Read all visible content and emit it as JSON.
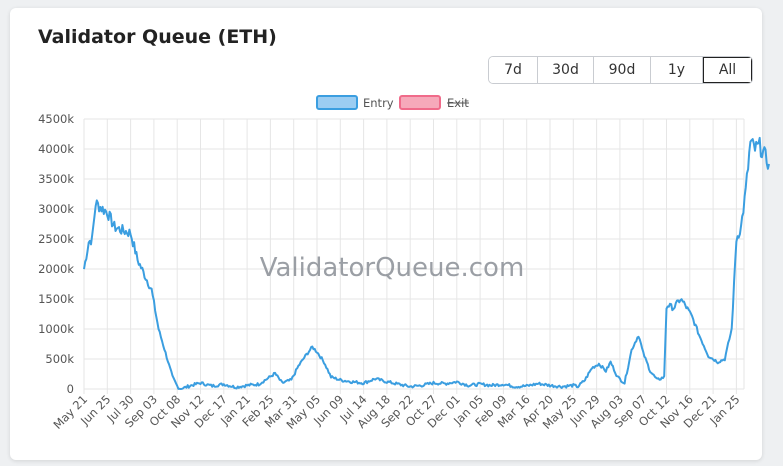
{
  "header": {
    "title": "Validator Queue (ETH)"
  },
  "ranges": [
    {
      "label": "7d",
      "active": false
    },
    {
      "label": "30d",
      "active": false
    },
    {
      "label": "90d",
      "active": false
    },
    {
      "label": "1y",
      "active": false
    },
    {
      "label": "All",
      "active": true
    }
  ],
  "watermark": "ValidatorQueue.com",
  "colors": {
    "entry": "#3b9ee0",
    "entry_fill": "#9ccdf2",
    "exit": "#f06b8a",
    "exit_fill": "#f6a9ba",
    "grid": "#e6e6e6"
  },
  "chart_data": {
    "type": "line",
    "title": "",
    "xlabel": "",
    "ylabel": "",
    "ylim": [
      0,
      4500000
    ],
    "y_ticks": [
      0,
      500000,
      1000000,
      1500000,
      2000000,
      2500000,
      3000000,
      3500000,
      4000000,
      4500000
    ],
    "y_tick_labels": [
      "0",
      "500k",
      "1000k",
      "1500k",
      "2000k",
      "2500k",
      "3000k",
      "3500k",
      "4000k",
      "4500k"
    ],
    "x_tick_labels": [
      "May 21",
      "Jun 25",
      "Jul 30",
      "Sep 03",
      "Oct 08",
      "Nov 12",
      "Dec 17",
      "Jan 21",
      "Feb 25",
      "Mar 31",
      "May 05",
      "Jun 09",
      "Jul 14",
      "Aug 18",
      "Sep 22",
      "Oct 27",
      "Dec 01",
      "Jan 05",
      "Feb 09",
      "Mar 16",
      "Apr 20",
      "May 25",
      "Jun 29",
      "Aug 03",
      "Sep 07",
      "Oct 12",
      "Nov 16",
      "Dec 21",
      "Jan 25"
    ],
    "legend": {
      "position": "top",
      "entries": [
        {
          "name": "Entry",
          "hidden": false
        },
        {
          "name": "Exit",
          "hidden": true
        }
      ]
    },
    "grid": true,
    "series": [
      {
        "name": "Entry",
        "x_tick_index": [
          0,
          0.2,
          0.35,
          0.5,
          0.8,
          1.0,
          1.3,
          1.6,
          2.0,
          2.3,
          2.6,
          2.9,
          3.2,
          3.5,
          3.8,
          4.0,
          4.1,
          4.3,
          4.6,
          5.0,
          5.5,
          6.0,
          6.5,
          7.0,
          7.5,
          7.9,
          8.2,
          8.5,
          8.9,
          9.2,
          9.5,
          9.8,
          10.0,
          10.3,
          10.6,
          11.0,
          11.5,
          12.0,
          12.5,
          13.0,
          13.5,
          14.0,
          14.5,
          15.0,
          15.5,
          16.0,
          16.5,
          17.0,
          17.5,
          18.0,
          18.5,
          19.0,
          19.5,
          20.0,
          20.5,
          21.0,
          21.2,
          21.5,
          21.8,
          22.1,
          22.4,
          22.6,
          22.9,
          23.2,
          23.5,
          23.8,
          24.0,
          24.3,
          24.6,
          24.9,
          25.0,
          25.05,
          25.3,
          25.6,
          25.8,
          26.1,
          26.4,
          26.8,
          27.2,
          27.5,
          27.8,
          28.0,
          28.2,
          28.4,
          28.6,
          28.8,
          29.0,
          29.2,
          29.4
        ],
        "values": [
          2000000,
          2450000,
          2500000,
          3100000,
          3000000,
          2950000,
          2700000,
          2650000,
          2600000,
          2150000,
          1900000,
          1650000,
          1000000,
          600000,
          200000,
          50000,
          0,
          20000,
          60000,
          100000,
          50000,
          80000,
          30000,
          60000,
          80000,
          180000,
          260000,
          100000,
          150000,
          380000,
          550000,
          700000,
          620000,
          450000,
          200000,
          150000,
          120000,
          100000,
          170000,
          120000,
          80000,
          40000,
          60000,
          100000,
          90000,
          120000,
          60000,
          80000,
          60000,
          80000,
          40000,
          50000,
          90000,
          60000,
          40000,
          60000,
          40000,
          150000,
          350000,
          420000,
          300000,
          450000,
          200000,
          100000,
          650000,
          900000,
          600000,
          300000,
          150000,
          200000,
          1350000,
          1400000,
          1350000,
          1500000,
          1400000,
          1200000,
          900000,
          550000,
          450000,
          500000,
          1000000,
          2500000,
          2700000,
          3300000,
          4100000,
          4000000,
          4050000,
          3900000,
          3750000
        ]
      },
      {
        "name": "Exit",
        "values": []
      }
    ]
  }
}
